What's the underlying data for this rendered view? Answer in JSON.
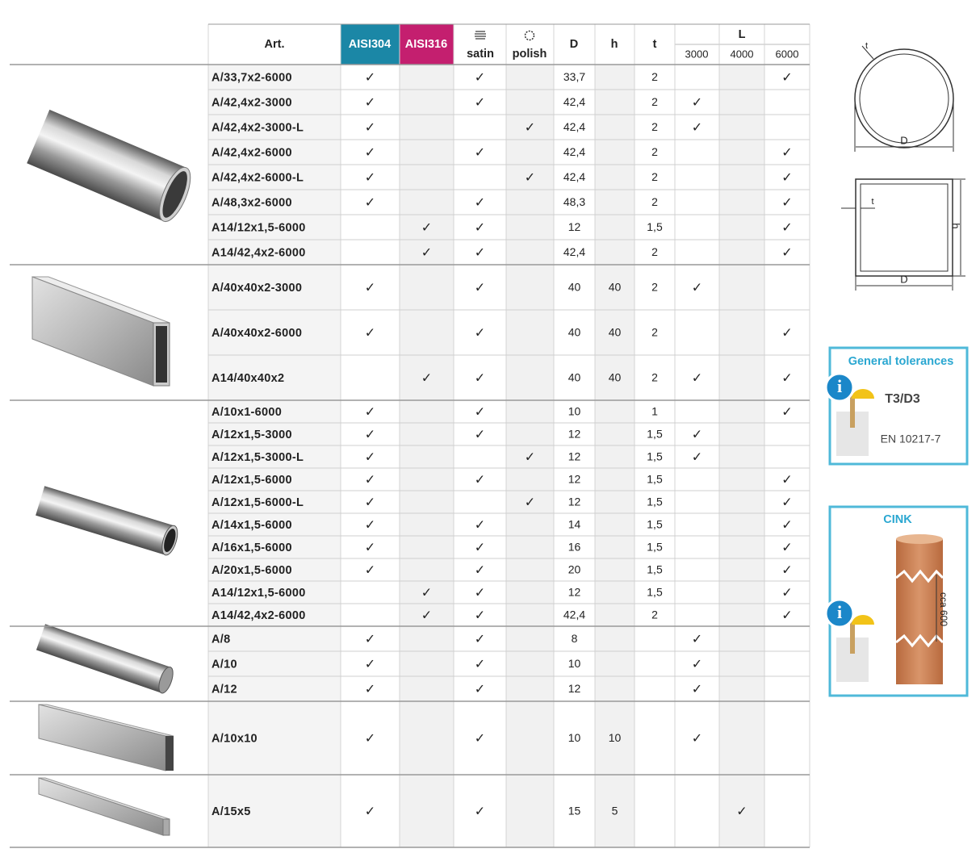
{
  "table": {
    "header": {
      "art": "Art.",
      "aisi304": "AISI304",
      "aisi316": "AISI316",
      "satin": "satin",
      "polish": "polish",
      "D": "D",
      "h": "h",
      "t": "t",
      "L": "L",
      "l3000": "3000",
      "l4000": "4000",
      "l6000": "6000"
    },
    "groups": [
      {
        "rows": [
          {
            "art": "A/33,7x2-6000",
            "aisi304": "✓",
            "satin": "✓",
            "D": "33,7",
            "t": "2",
            "l6000": "✓"
          },
          {
            "art": "A/42,4x2-3000",
            "aisi304": "✓",
            "satin": "✓",
            "D": "42,4",
            "t": "2",
            "l3000": "✓"
          },
          {
            "art": "A/42,4x2-3000-L",
            "aisi304": "✓",
            "polish": "✓",
            "D": "42,4",
            "t": "2",
            "l3000": "✓"
          },
          {
            "art": "A/42,4x2-6000",
            "aisi304": "✓",
            "satin": "✓",
            "D": "42,4",
            "t": "2",
            "l6000": "✓"
          },
          {
            "art": "A/42,4x2-6000-L",
            "aisi304": "✓",
            "polish": "✓",
            "D": "42,4",
            "t": "2",
            "l6000": "✓"
          },
          {
            "art": "A/48,3x2-6000",
            "aisi304": "✓",
            "satin": "✓",
            "D": "48,3",
            "t": "2",
            "l6000": "✓"
          },
          {
            "art": "A14/12x1,5-6000",
            "aisi316": "✓",
            "satin": "✓",
            "D": "12",
            "t": "1,5",
            "l6000": "✓"
          },
          {
            "art": "A14/42,4x2-6000",
            "aisi316": "✓",
            "satin": "✓",
            "D": "42,4",
            "t": "2",
            "l6000": "✓"
          }
        ]
      },
      {
        "rows": [
          {
            "art": "A/40x40x2-3000",
            "aisi304": "✓",
            "satin": "✓",
            "D": "40",
            "h": "40",
            "t": "2",
            "l3000": "✓"
          },
          {
            "art": "A/40x40x2-6000",
            "aisi304": "✓",
            "satin": "✓",
            "D": "40",
            "h": "40",
            "t": "2",
            "l6000": "✓"
          },
          {
            "art": "A14/40x40x2",
            "aisi316": "✓",
            "satin": "✓",
            "D": "40",
            "h": "40",
            "t": "2",
            "l3000": "✓",
            "l6000": "✓"
          }
        ]
      },
      {
        "rows": [
          {
            "art": "A/10x1-6000",
            "aisi304": "✓",
            "satin": "✓",
            "D": "10",
            "t": "1",
            "l6000": "✓"
          },
          {
            "art": "A/12x1,5-3000",
            "aisi304": "✓",
            "satin": "✓",
            "D": "12",
            "t": "1,5",
            "l3000": "✓"
          },
          {
            "art": "A/12x1,5-3000-L",
            "aisi304": "✓",
            "polish": "✓",
            "D": "12",
            "t": "1,5",
            "l3000": "✓"
          },
          {
            "art": "A/12x1,5-6000",
            "aisi304": "✓",
            "satin": "✓",
            "D": "12",
            "t": "1,5",
            "l6000": "✓"
          },
          {
            "art": "A/12x1,5-6000-L",
            "aisi304": "✓",
            "polish": "✓",
            "D": "12",
            "t": "1,5",
            "l6000": "✓"
          },
          {
            "art": "A/14x1,5-6000",
            "aisi304": "✓",
            "satin": "✓",
            "D": "14",
            "t": "1,5",
            "l6000": "✓"
          },
          {
            "art": "A/16x1,5-6000",
            "aisi304": "✓",
            "satin": "✓",
            "D": "16",
            "t": "1,5",
            "l6000": "✓"
          },
          {
            "art": "A/20x1,5-6000",
            "aisi304": "✓",
            "satin": "✓",
            "D": "20",
            "t": "1,5",
            "l6000": "✓"
          },
          {
            "art": "A14/12x1,5-6000",
            "aisi316": "✓",
            "satin": "✓",
            "D": "12",
            "t": "1,5",
            "l6000": "✓"
          },
          {
            "art": "A14/42,4x2-6000",
            "aisi316": "✓",
            "satin": "✓",
            "D": "42,4",
            "t": "2",
            "l6000": "✓"
          }
        ]
      },
      {
        "rows": [
          {
            "art": "A/8",
            "aisi304": "✓",
            "satin": "✓",
            "D": "8",
            "l3000": "✓"
          },
          {
            "art": "A/10",
            "aisi304": "✓",
            "satin": "✓",
            "D": "10",
            "l3000": "✓"
          },
          {
            "art": "A/12",
            "aisi304": "✓",
            "satin": "✓",
            "D": "12",
            "l3000": "✓"
          }
        ]
      },
      {
        "rows": [
          {
            "art": "A/10x10",
            "aisi304": "✓",
            "satin": "✓",
            "D": "10",
            "h": "10",
            "l3000": "✓"
          }
        ]
      },
      {
        "rows": [
          {
            "art": "A/15x5",
            "aisi304": "✓",
            "satin": "✓",
            "D": "15",
            "h": "5",
            "l4000": "✓"
          }
        ]
      }
    ]
  },
  "diagrams": {
    "round": {
      "t": "t",
      "D": "D"
    },
    "square": {
      "t": "t",
      "h": "h",
      "D": "D"
    }
  },
  "tolerances": {
    "title": "General tolerances",
    "grade": "T3/D3",
    "standard": "EN 10217-7"
  },
  "cink": {
    "title": "CINK",
    "length": "cca 600"
  }
}
